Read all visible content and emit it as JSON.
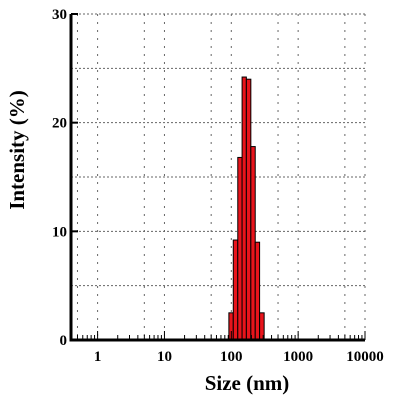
{
  "chart_data": {
    "type": "bar",
    "title": "",
    "xlabel": "Size (nm)",
    "ylabel": "Intensity (%)",
    "xscale": "log",
    "xlim": [
      0.4,
      10000
    ],
    "ylim": [
      0,
      30
    ],
    "xticks": [
      1,
      10,
      100,
      1000,
      10000
    ],
    "xtick_labels": [
      "1",
      "10",
      "100",
      "1000",
      "10000"
    ],
    "yticks": [
      0,
      10,
      20,
      30
    ],
    "ytick_labels": [
      "0",
      "10",
      "20",
      "30"
    ],
    "grid": true,
    "bar_color": "#e8141b",
    "bins": [
      {
        "x0": 92,
        "x1": 107,
        "value": 2.5
      },
      {
        "x0": 107,
        "x1": 125,
        "value": 9.2
      },
      {
        "x0": 125,
        "x1": 145,
        "value": 16.8
      },
      {
        "x0": 145,
        "x1": 168,
        "value": 24.2
      },
      {
        "x0": 168,
        "x1": 196,
        "value": 24.0
      },
      {
        "x0": 196,
        "x1": 228,
        "value": 17.8
      },
      {
        "x0": 228,
        "x1": 265,
        "value": 9.0
      },
      {
        "x0": 265,
        "x1": 310,
        "value": 2.5
      }
    ]
  }
}
